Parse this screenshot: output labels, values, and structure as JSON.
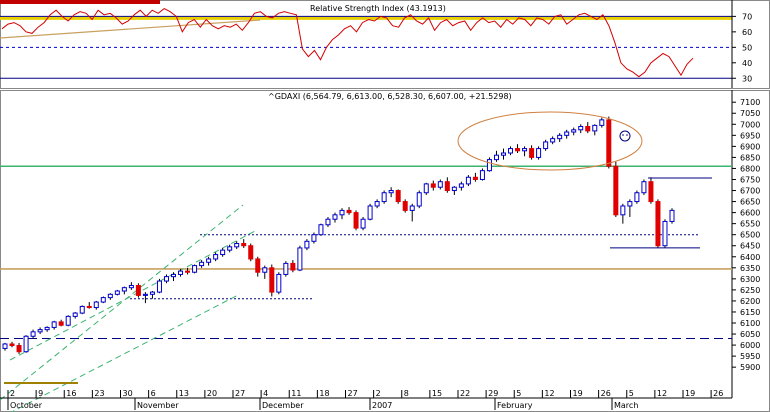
{
  "chart_data": [
    {
      "type": "line",
      "title": "Relative Strength Index (43.1913)",
      "y_ticks": [
        "70",
        "60",
        "50",
        "40",
        "30"
      ],
      "ylim": [
        25,
        78
      ],
      "overbought": 70,
      "oversold": 30,
      "midline": 50,
      "series": [
        {
          "values": [
            62,
            65,
            66,
            64,
            60,
            59,
            63,
            66,
            71,
            74,
            70,
            67,
            71,
            73,
            72,
            68,
            74,
            71,
            72,
            69,
            65,
            67,
            71,
            74,
            70,
            74,
            72,
            75,
            73,
            70,
            60,
            66,
            68,
            63,
            68,
            64,
            62,
            64,
            63,
            65,
            61,
            66,
            72,
            73,
            70,
            69,
            72,
            73,
            72,
            71,
            49,
            44,
            48,
            42,
            50,
            55,
            58,
            62,
            64,
            60,
            66,
            68,
            67,
            70,
            69,
            64,
            63,
            69,
            71,
            67,
            65,
            69,
            61,
            66,
            68,
            64,
            66,
            67,
            61,
            66,
            69,
            66,
            67,
            63,
            68,
            65,
            69,
            68,
            64,
            69,
            68,
            65,
            70,
            71,
            65,
            68,
            71,
            72,
            70,
            68,
            71,
            64,
            53,
            40,
            36,
            34,
            31,
            34,
            40,
            43,
            46,
            44,
            38,
            32,
            39,
            43
          ]
        }
      ],
      "colors": {
        "line": "#d40000",
        "guide_70": "#000080",
        "guide_50": "#0000d0",
        "guide_30": "#000080",
        "band": "#e8d000",
        "band2": "#c8a060"
      }
    },
    {
      "type": "candlestick",
      "title": "^GDAXI (6,564.79, 6,613.00, 6,528.30, 6,607.00, +21.5298)",
      "ylim": [
        5860,
        7110
      ],
      "y_ticks": [
        "7100",
        "7050",
        "7000",
        "6950",
        "6900",
        "6850",
        "6800",
        "6750",
        "6700",
        "6650",
        "6600",
        "6550",
        "6500",
        "6450",
        "6400",
        "6350",
        "6300",
        "6250",
        "6200",
        "6150",
        "6100",
        "6050",
        "6000",
        "5950",
        "5900"
      ],
      "x_ticks": [
        "2",
        "9",
        "16",
        "23",
        "30",
        "6",
        "13",
        "20",
        "27",
        "4",
        "11",
        "18",
        "27",
        "2",
        "8",
        "15",
        "22",
        "29",
        "5",
        "12",
        "19",
        "26",
        "5",
        "12",
        "19",
        "26"
      ],
      "month_labels": [
        "October",
        "November",
        "December",
        "2007",
        "February",
        "March"
      ],
      "horizontal_levels": [
        {
          "value": 6810,
          "color": "#3cb371",
          "style": "solid"
        },
        {
          "value": 6345,
          "color": "#c8a060",
          "style": "solid"
        },
        {
          "value": 6030,
          "color": "#000080",
          "style": "dashed"
        },
        {
          "value": 6500,
          "color": "#000080",
          "style": "dotted"
        },
        {
          "value": 6210,
          "color": "#000080",
          "style": "dotted"
        }
      ],
      "candles": [
        [
          5985,
          6010,
          5975,
          6005
        ],
        [
          6005,
          6015,
          5990,
          5998
        ],
        [
          5998,
          6010,
          5960,
          5970
        ],
        [
          5970,
          6045,
          5965,
          6040
        ],
        [
          6040,
          6070,
          6030,
          6060
        ],
        [
          6060,
          6080,
          6050,
          6070
        ],
        [
          6070,
          6085,
          6060,
          6080
        ],
        [
          6080,
          6110,
          6070,
          6105
        ],
        [
          6105,
          6115,
          6085,
          6090
        ],
        [
          6090,
          6135,
          6085,
          6130
        ],
        [
          6130,
          6150,
          6120,
          6145
        ],
        [
          6145,
          6180,
          6140,
          6175
        ],
        [
          6175,
          6195,
          6165,
          6170
        ],
        [
          6170,
          6200,
          6160,
          6195
        ],
        [
          6195,
          6220,
          6190,
          6215
        ],
        [
          6215,
          6235,
          6205,
          6230
        ],
        [
          6230,
          6250,
          6225,
          6245
        ],
        [
          6245,
          6265,
          6230,
          6260
        ],
        [
          6260,
          6285,
          6250,
          6270
        ],
        [
          6270,
          6280,
          6215,
          6225
        ],
        [
          6225,
          6240,
          6190,
          6230
        ],
        [
          6230,
          6245,
          6210,
          6240
        ],
        [
          6240,
          6300,
          6235,
          6290
        ],
        [
          6290,
          6320,
          6280,
          6310
        ],
        [
          6310,
          6330,
          6290,
          6320
        ],
        [
          6320,
          6345,
          6310,
          6335
        ],
        [
          6335,
          6350,
          6320,
          6330
        ],
        [
          6330,
          6365,
          6325,
          6360
        ],
        [
          6360,
          6385,
          6350,
          6375
        ],
        [
          6375,
          6400,
          6360,
          6390
        ],
        [
          6390,
          6420,
          6380,
          6410
        ],
        [
          6410,
          6440,
          6400,
          6430
        ],
        [
          6430,
          6455,
          6420,
          6445
        ],
        [
          6445,
          6470,
          6435,
          6460
        ],
        [
          6460,
          6480,
          6440,
          6450
        ],
        [
          6450,
          6460,
          6380,
          6390
        ],
        [
          6390,
          6400,
          6310,
          6330
        ],
        [
          6330,
          6360,
          6300,
          6350
        ],
        [
          6350,
          6365,
          6220,
          6240
        ],
        [
          6240,
          6330,
          6230,
          6320
        ],
        [
          6320,
          6380,
          6310,
          6370
        ],
        [
          6370,
          6385,
          6330,
          6340
        ],
        [
          6340,
          6450,
          6335,
          6440
        ],
        [
          6440,
          6480,
          6430,
          6470
        ],
        [
          6470,
          6510,
          6460,
          6500
        ],
        [
          6500,
          6550,
          6495,
          6545
        ],
        [
          6545,
          6580,
          6535,
          6570
        ],
        [
          6570,
          6600,
          6555,
          6590
        ],
        [
          6590,
          6620,
          6570,
          6610
        ],
        [
          6610,
          6625,
          6590,
          6600
        ],
        [
          6600,
          6610,
          6520,
          6530
        ],
        [
          6530,
          6580,
          6520,
          6570
        ],
        [
          6570,
          6640,
          6565,
          6630
        ],
        [
          6630,
          6660,
          6620,
          6650
        ],
        [
          6650,
          6700,
          6640,
          6690
        ],
        [
          6690,
          6715,
          6670,
          6700
        ],
        [
          6700,
          6705,
          6640,
          6650
        ],
        [
          6650,
          6660,
          6600,
          6610
        ],
        [
          6610,
          6640,
          6560,
          6630
        ],
        [
          6630,
          6700,
          6620,
          6690
        ],
        [
          6690,
          6735,
          6680,
          6730
        ],
        [
          6730,
          6745,
          6700,
          6715
        ],
        [
          6715,
          6750,
          6705,
          6740
        ],
        [
          6740,
          6760,
          6690,
          6700
        ],
        [
          6700,
          6720,
          6680,
          6715
        ],
        [
          6715,
          6740,
          6700,
          6730
        ],
        [
          6730,
          6770,
          6720,
          6760
        ],
        [
          6760,
          6780,
          6740,
          6750
        ],
        [
          6750,
          6800,
          6745,
          6790
        ],
        [
          6790,
          6850,
          6785,
          6840
        ],
        [
          6840,
          6880,
          6830,
          6860
        ],
        [
          6860,
          6890,
          6840,
          6870
        ],
        [
          6870,
          6900,
          6860,
          6890
        ],
        [
          6890,
          6910,
          6870,
          6880
        ],
        [
          6880,
          6900,
          6855,
          6890
        ],
        [
          6890,
          6905,
          6840,
          6850
        ],
        [
          6850,
          6900,
          6840,
          6890
        ],
        [
          6890,
          6930,
          6880,
          6920
        ],
        [
          6920,
          6945,
          6910,
          6935
        ],
        [
          6935,
          6960,
          6920,
          6950
        ],
        [
          6950,
          6975,
          6935,
          6965
        ],
        [
          6965,
          6985,
          6950,
          6975
        ],
        [
          6975,
          7000,
          6960,
          6990
        ],
        [
          6990,
          7010,
          6960,
          6970
        ],
        [
          6970,
          7000,
          6950,
          6995
        ],
        [
          6995,
          7030,
          6985,
          7020
        ],
        [
          7020,
          7035,
          6800,
          6810
        ],
        [
          6810,
          6830,
          6580,
          6590
        ],
        [
          6590,
          6640,
          6550,
          6630
        ],
        [
          6630,
          6660,
          6580,
          6650
        ],
        [
          6650,
          6700,
          6640,
          6690
        ],
        [
          6690,
          6750,
          6680,
          6740
        ],
        [
          6740,
          6760,
          6640,
          6650
        ],
        [
          6650,
          6660,
          6440,
          6450
        ],
        [
          6450,
          6570,
          6440,
          6560
        ],
        [
          6560,
          6620,
          6550,
          6610
        ]
      ],
      "colors": {
        "up": "#0000d0",
        "down": "#e00000",
        "wick": "#000"
      }
    }
  ]
}
